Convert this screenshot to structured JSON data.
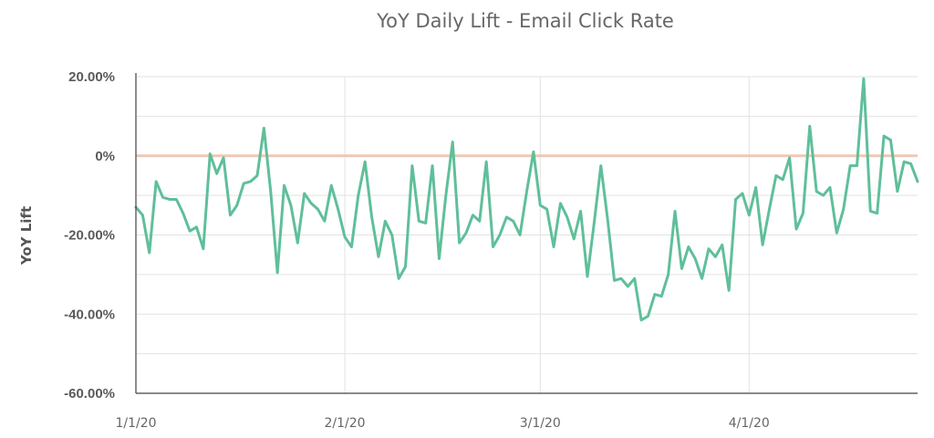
{
  "chart_data": {
    "type": "line",
    "title": "YoY Daily Lift - Email Click Rate",
    "xlabel": "",
    "ylabel": "YoY Lift",
    "ylim": [
      -60,
      20
    ],
    "yticks": [
      20,
      0,
      -20,
      -40,
      -60
    ],
    "ytick_labels": [
      "20.00%",
      "0%",
      "-20.00%",
      "-40.00%",
      "-60.00%"
    ],
    "x_start": "2020-01-01",
    "xticks": [
      {
        "day": 0,
        "label": "1/1/20"
      },
      {
        "day": 31,
        "label": "2/1/20"
      },
      {
        "day": 60,
        "label": "3/1/20"
      },
      {
        "day": 91,
        "label": "4/1/20"
      }
    ],
    "x_max_day": 116,
    "reference_line": {
      "value": 0,
      "color": "#edc9b2"
    },
    "grid": true,
    "legend": "none",
    "series": [
      {
        "name": "",
        "color": "#5fbf9a",
        "values": [
          -13,
          -15,
          -24.5,
          -6.5,
          -10.5,
          -11,
          -11,
          -14.5,
          -19,
          -18,
          -23.5,
          0.5,
          -4.5,
          -0.5,
          -15,
          -12.5,
          -7,
          -6.5,
          -5,
          7,
          -9,
          -29.5,
          -7.5,
          -12.5,
          -22,
          -9.5,
          -12,
          -13.5,
          -16.5,
          -7.5,
          -13.5,
          -20.5,
          -23,
          -10,
          -1.5,
          -15.5,
          -25.5,
          -16.5,
          -20,
          -31,
          -28,
          -2.5,
          -16.5,
          -17,
          -2.5,
          -26,
          -10,
          3.5,
          -22,
          -19.5,
          -15,
          -16.5,
          -1.5,
          -23,
          -20,
          -15.5,
          -16.5,
          -20,
          -9,
          1,
          -12.5,
          -13.5,
          -23,
          -12,
          -15.5,
          -21,
          -14,
          -30.5,
          -17,
          -2.5,
          -16,
          -31.5,
          -31,
          -33,
          -31,
          -41.5,
          -40.5,
          -35,
          -35.5,
          -30,
          -14,
          -28.5,
          -23,
          -26,
          -31,
          -23.5,
          -25.5,
          -22.5,
          -34,
          -11,
          -9.5,
          -15,
          -8,
          -22.5,
          -13.5,
          -5,
          -6,
          -0.5,
          -18.5,
          -14.5,
          7.5,
          -9,
          -10,
          -8,
          -19.5,
          -13.5,
          -2.5,
          -2.5,
          19.5,
          -14,
          -14.5,
          5,
          4,
          -9,
          -1.5,
          -2,
          -6.5
        ]
      }
    ]
  }
}
